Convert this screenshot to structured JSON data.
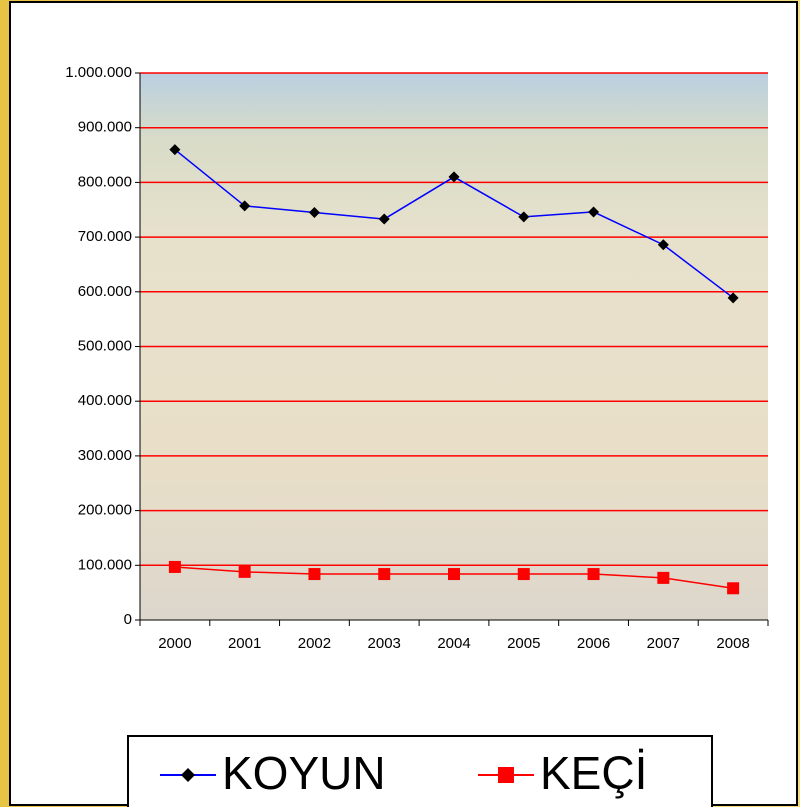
{
  "chart_data": {
    "type": "line",
    "categories": [
      "2000",
      "2001",
      "2002",
      "2003",
      "2004",
      "2005",
      "2006",
      "2007",
      "2008"
    ],
    "series": [
      {
        "name": "KOYUN",
        "color": "#0000ff",
        "marker": "diamond",
        "marker_color": "#000000",
        "values": [
          860000,
          757000,
          745000,
          733000,
          810000,
          737000,
          746000,
          686000,
          589000
        ]
      },
      {
        "name": "KEÇİ",
        "color": "#ff0000",
        "marker": "square",
        "marker_color": "#ff0000",
        "values": [
          97000,
          88000,
          84000,
          84000,
          84000,
          84000,
          84000,
          77000,
          58000
        ]
      }
    ],
    "ylim": [
      0,
      1000000
    ],
    "yticks": [
      0,
      {
        "value": 100000,
        "label": "100.000"
      },
      {
        "value": 200000,
        "label": "200.000"
      },
      {
        "value": 300000,
        "label": "300.000"
      },
      {
        "value": 400000,
        "label": "400.000"
      },
      {
        "value": 500000,
        "label": "500.000"
      },
      {
        "value": 600000,
        "label": "600.000"
      },
      {
        "value": 700000,
        "label": "700.000"
      },
      {
        "value": 800000,
        "label": "800.000"
      },
      {
        "value": 900000,
        "label": "900.000"
      },
      {
        "value": 1000000,
        "label": "1.000.000"
      }
    ],
    "grid": true,
    "grid_color": "#ff0000",
    "legend": "bottom"
  }
}
